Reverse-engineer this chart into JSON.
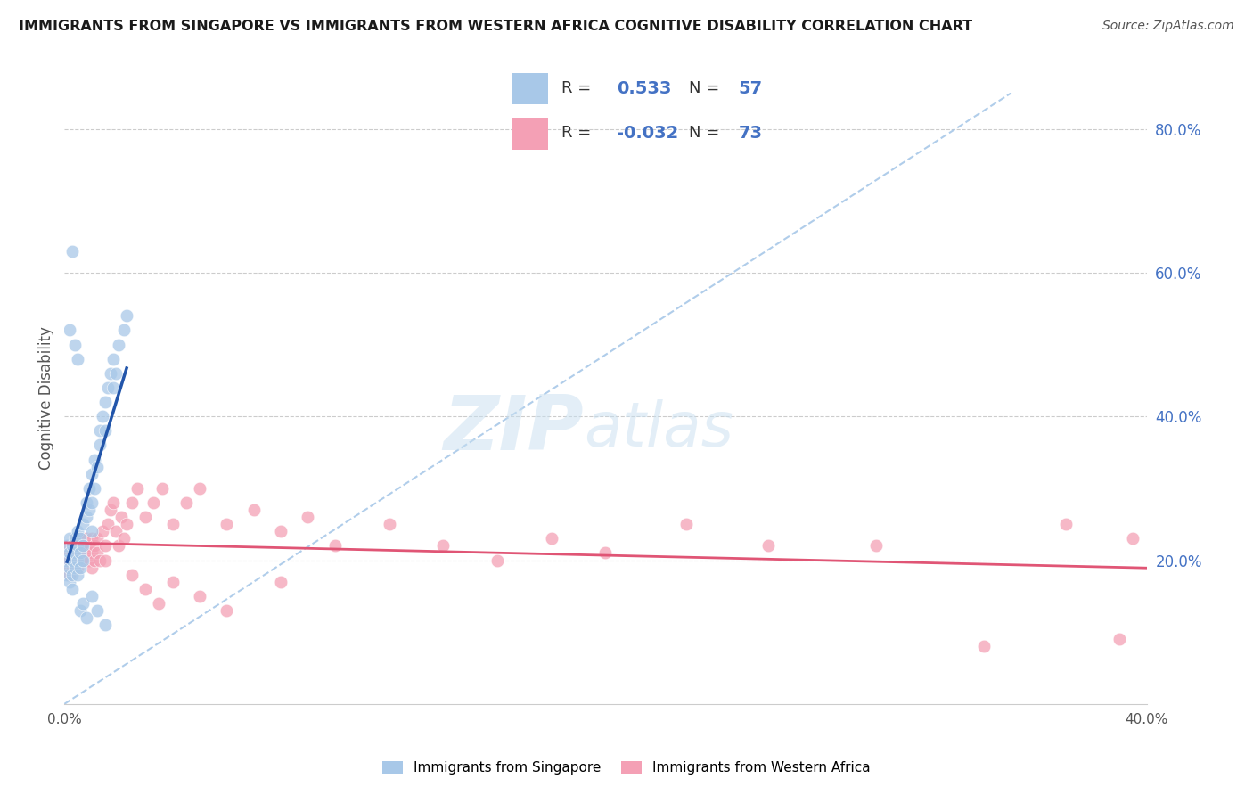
{
  "title": "IMMIGRANTS FROM SINGAPORE VS IMMIGRANTS FROM WESTERN AFRICA COGNITIVE DISABILITY CORRELATION CHART",
  "source": "Source: ZipAtlas.com",
  "ylabel": "Cognitive Disability",
  "xmin": 0.0,
  "xmax": 0.4,
  "ymin": 0.0,
  "ymax": 0.85,
  "right_yticks": [
    0.2,
    0.4,
    0.6,
    0.8
  ],
  "right_yticklabels": [
    "20.0%",
    "40.0%",
    "60.0%",
    "80.0%"
  ],
  "bottom_xticks": [
    0.0,
    0.05,
    0.1,
    0.15,
    0.2,
    0.25,
    0.3,
    0.35,
    0.4
  ],
  "singapore_color": "#A8C8E8",
  "western_africa_color": "#F4A0B5",
  "singapore_line_color": "#2255AA",
  "western_africa_line_color": "#E05575",
  "diag_color": "#A8C8E8",
  "R_singapore": 0.533,
  "N_singapore": 57,
  "R_western_africa": -0.032,
  "N_western_africa": 73,
  "watermark_zip": "ZIP",
  "watermark_atlas": "atlas",
  "legend_R_color": "#333333",
  "legend_val_sg_color": "#4472C4",
  "legend_val_wa_color": "#4472C4",
  "singapore_x": [
    0.001,
    0.001,
    0.001,
    0.002,
    0.002,
    0.002,
    0.002,
    0.003,
    0.003,
    0.003,
    0.003,
    0.004,
    0.004,
    0.004,
    0.005,
    0.005,
    0.005,
    0.005,
    0.006,
    0.006,
    0.006,
    0.007,
    0.007,
    0.007,
    0.008,
    0.008,
    0.009,
    0.009,
    0.01,
    0.01,
    0.01,
    0.011,
    0.011,
    0.012,
    0.013,
    0.013,
    0.014,
    0.015,
    0.015,
    0.016,
    0.017,
    0.018,
    0.018,
    0.019,
    0.02,
    0.022,
    0.023,
    0.002,
    0.003,
    0.004,
    0.005,
    0.006,
    0.007,
    0.008,
    0.01,
    0.012,
    0.015
  ],
  "singapore_y": [
    0.2,
    0.18,
    0.22,
    0.19,
    0.21,
    0.17,
    0.23,
    0.2,
    0.18,
    0.22,
    0.16,
    0.21,
    0.19,
    0.23,
    0.2,
    0.22,
    0.24,
    0.18,
    0.21,
    0.19,
    0.23,
    0.22,
    0.25,
    0.2,
    0.26,
    0.28,
    0.27,
    0.3,
    0.28,
    0.32,
    0.24,
    0.3,
    0.34,
    0.33,
    0.36,
    0.38,
    0.4,
    0.38,
    0.42,
    0.44,
    0.46,
    0.44,
    0.48,
    0.46,
    0.5,
    0.52,
    0.54,
    0.52,
    0.63,
    0.5,
    0.48,
    0.13,
    0.14,
    0.12,
    0.15,
    0.13,
    0.11
  ],
  "western_africa_x": [
    0.001,
    0.001,
    0.002,
    0.002,
    0.002,
    0.003,
    0.003,
    0.004,
    0.004,
    0.004,
    0.005,
    0.005,
    0.005,
    0.006,
    0.006,
    0.007,
    0.007,
    0.007,
    0.008,
    0.008,
    0.009,
    0.009,
    0.01,
    0.01,
    0.01,
    0.011,
    0.011,
    0.012,
    0.012,
    0.013,
    0.014,
    0.015,
    0.015,
    0.016,
    0.017,
    0.018,
    0.019,
    0.02,
    0.021,
    0.022,
    0.023,
    0.025,
    0.027,
    0.03,
    0.033,
    0.036,
    0.04,
    0.045,
    0.05,
    0.06,
    0.07,
    0.08,
    0.09,
    0.1,
    0.12,
    0.14,
    0.16,
    0.18,
    0.2,
    0.23,
    0.26,
    0.3,
    0.34,
    0.37,
    0.39,
    0.395,
    0.025,
    0.03,
    0.035,
    0.04,
    0.05,
    0.06,
    0.08
  ],
  "western_africa_y": [
    0.21,
    0.19,
    0.22,
    0.2,
    0.18,
    0.21,
    0.19,
    0.22,
    0.2,
    0.23,
    0.21,
    0.19,
    0.22,
    0.2,
    0.23,
    0.21,
    0.2,
    0.22,
    0.21,
    0.23,
    0.2,
    0.22,
    0.21,
    0.23,
    0.19,
    0.22,
    0.2,
    0.21,
    0.23,
    0.2,
    0.24,
    0.22,
    0.2,
    0.25,
    0.27,
    0.28,
    0.24,
    0.22,
    0.26,
    0.23,
    0.25,
    0.28,
    0.3,
    0.26,
    0.28,
    0.3,
    0.25,
    0.28,
    0.3,
    0.25,
    0.27,
    0.24,
    0.26,
    0.22,
    0.25,
    0.22,
    0.2,
    0.23,
    0.21,
    0.25,
    0.22,
    0.22,
    0.08,
    0.25,
    0.09,
    0.23,
    0.18,
    0.16,
    0.14,
    0.17,
    0.15,
    0.13,
    0.17
  ]
}
